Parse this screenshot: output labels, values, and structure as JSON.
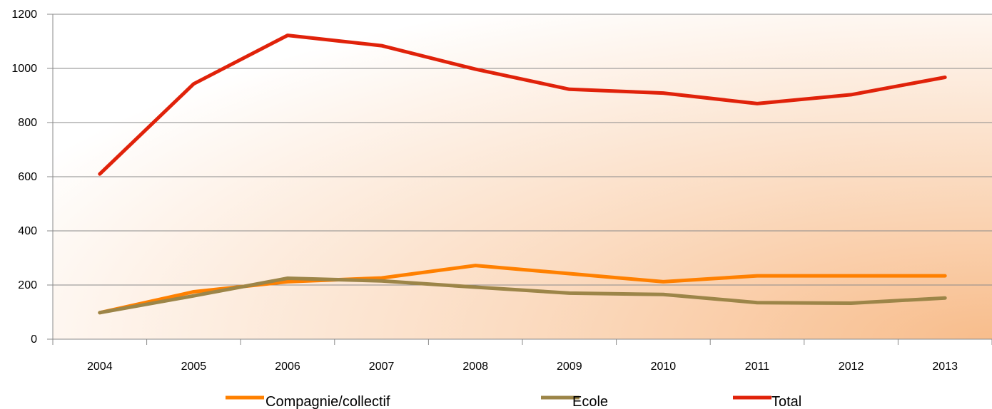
{
  "chart_data": {
    "type": "line",
    "title": "",
    "xlabel": "",
    "ylabel": "",
    "ylim": [
      0,
      1200
    ],
    "yticks": [
      0,
      200,
      400,
      600,
      800,
      1000,
      1200
    ],
    "categories": [
      "2004",
      "2005",
      "2006",
      "2007",
      "2008",
      "2009",
      "2010",
      "2011",
      "2012",
      "2013"
    ],
    "grid": true,
    "legend_position": "bottom",
    "series": [
      {
        "name": "Compagnie/collectif",
        "color": "#ff8000",
        "values": [
          98,
          175,
          212,
          226,
          272,
          242,
          212,
          234,
          234,
          234
        ]
      },
      {
        "name": "Ecole",
        "color": "#9c8548",
        "values": [
          98,
          160,
          225,
          215,
          192,
          170,
          165,
          135,
          133,
          152
        ]
      },
      {
        "name": "Total",
        "color": "#e0220a",
        "values": [
          610,
          943,
          1122,
          1084,
          997,
          923,
          909,
          870,
          903,
          967
        ]
      }
    ]
  }
}
